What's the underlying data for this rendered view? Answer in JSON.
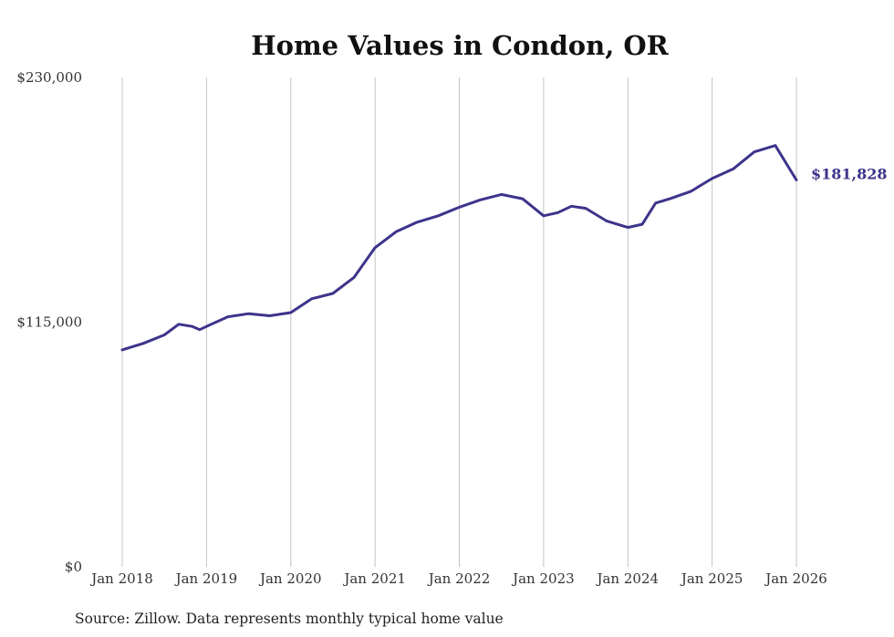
{
  "chart_data": {
    "type": "line",
    "title": "Home Values in Condon, OR",
    "source": "Source: Zillow. Data represents monthly typical home value",
    "series_color": "#3d348b",
    "xlabel": "",
    "ylabel": "",
    "ylim": [
      0,
      230000
    ],
    "yticks": [
      {
        "value": 0,
        "label": "$0"
      },
      {
        "value": 115000,
        "label": "$115,000"
      },
      {
        "value": 230000,
        "label": "$230,000"
      }
    ],
    "xlim": [
      2018,
      2026
    ],
    "xticks": [
      {
        "value": 2018,
        "label": "Jan 2018"
      },
      {
        "value": 2019,
        "label": "Jan 2019"
      },
      {
        "value": 2020,
        "label": "Jan 2020"
      },
      {
        "value": 2021,
        "label": "Jan 2021"
      },
      {
        "value": 2022,
        "label": "Jan 2022"
      },
      {
        "value": 2023,
        "label": "Jan 2023"
      },
      {
        "value": 2024,
        "label": "Jan 2024"
      },
      {
        "value": 2025,
        "label": "Jan 2025"
      },
      {
        "value": 2026,
        "label": "Jan 2026"
      }
    ],
    "grid": true,
    "end_label": "$181,828",
    "series": [
      {
        "name": "Typical home value",
        "x": [
          2018.0,
          2018.25,
          2018.5,
          2018.67,
          2018.83,
          2018.92,
          2019.0,
          2019.25,
          2019.5,
          2019.75,
          2020.0,
          2020.25,
          2020.5,
          2020.75,
          2021.0,
          2021.25,
          2021.5,
          2021.75,
          2022.0,
          2022.25,
          2022.5,
          2022.75,
          2023.0,
          2023.17,
          2023.33,
          2023.5,
          2023.75,
          2024.0,
          2024.17,
          2024.33,
          2024.5,
          2024.75,
          2025.0,
          2025.25,
          2025.5,
          2025.75,
          2026.0
        ],
        "y": [
          102000,
          105000,
          109000,
          114000,
          113000,
          111500,
          113000,
          117500,
          119000,
          118000,
          119500,
          126000,
          128500,
          136000,
          150000,
          157500,
          162000,
          165000,
          169000,
          172500,
          175000,
          173000,
          165000,
          166500,
          169500,
          168500,
          162500,
          159500,
          161000,
          171000,
          173000,
          176500,
          182500,
          187000,
          195000,
          198000,
          181828
        ]
      }
    ]
  }
}
